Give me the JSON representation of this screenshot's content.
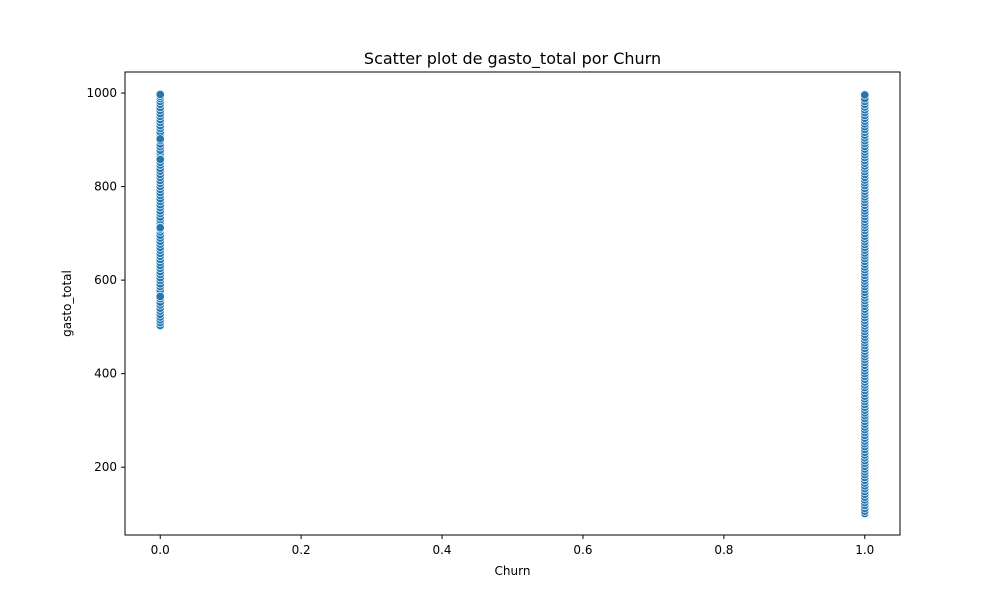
{
  "chart_data": {
    "type": "scatter",
    "title": "Scatter plot de gasto_total por Churn",
    "xlabel": "Churn",
    "ylabel": "gasto_total",
    "xlim": [
      -0.05,
      1.05
    ],
    "ylim": [
      55,
      1045
    ],
    "xticks": [
      {
        "value": 0.0,
        "label": "0.0"
      },
      {
        "value": 0.2,
        "label": "0.2"
      },
      {
        "value": 0.4,
        "label": "0.4"
      },
      {
        "value": 0.6,
        "label": "0.6"
      },
      {
        "value": 0.8,
        "label": "0.8"
      },
      {
        "value": 1.0,
        "label": "1.0"
      }
    ],
    "yticks": [
      {
        "value": 200,
        "label": "200"
      },
      {
        "value": 400,
        "label": "400"
      },
      {
        "value": 600,
        "label": "600"
      },
      {
        "value": 800,
        "label": "800"
      },
      {
        "value": 1000,
        "label": "1000"
      }
    ],
    "grid": false,
    "marker_color": "#1f77b4",
    "marker_edge_color": "#ffffff",
    "series": [
      {
        "x": [
          0,
          0,
          0,
          0,
          0,
          0,
          0,
          0,
          0,
          0,
          0,
          0,
          0,
          0,
          0,
          0,
          0,
          0,
          0,
          0,
          0,
          0,
          0,
          0,
          0,
          0,
          0,
          0,
          0,
          0,
          0,
          0,
          0,
          0,
          0,
          0,
          0,
          0,
          0,
          0,
          0,
          0,
          0,
          0,
          0,
          0,
          0,
          0,
          0,
          0,
          0,
          0,
          0,
          0,
          0,
          0,
          0,
          0,
          0,
          0,
          0,
          0,
          0,
          0,
          0,
          0,
          0,
          0,
          0,
          0,
          0,
          0,
          0,
          0,
          0,
          0,
          0,
          0,
          0,
          0,
          0,
          0
        ],
        "y": [
          503,
          509,
          515,
          521,
          527,
          534,
          540,
          547,
          553,
          560,
          566,
          573,
          579,
          586,
          592,
          599,
          605,
          612,
          618,
          625,
          631,
          638,
          644,
          651,
          657,
          664,
          670,
          677,
          683,
          690,
          696,
          703,
          709,
          716,
          722,
          729,
          735,
          742,
          748,
          755,
          761,
          768,
          774,
          781,
          787,
          794,
          800,
          807,
          813,
          820,
          826,
          833,
          839,
          846,
          852,
          859,
          865,
          872,
          878,
          885,
          891,
          898,
          904,
          911,
          917,
          924,
          930,
          937,
          943,
          950,
          956,
          963,
          969,
          976,
          982,
          988,
          993,
          997,
          565,
          712,
          858,
          902
        ]
      },
      {
        "x": [
          1,
          1,
          1,
          1,
          1,
          1,
          1,
          1,
          1,
          1,
          1,
          1,
          1,
          1,
          1,
          1,
          1,
          1,
          1,
          1,
          1,
          1,
          1,
          1,
          1,
          1,
          1,
          1,
          1,
          1,
          1,
          1,
          1,
          1,
          1,
          1,
          1,
          1,
          1,
          1,
          1,
          1,
          1,
          1,
          1,
          1,
          1,
          1,
          1,
          1,
          1,
          1,
          1,
          1,
          1,
          1,
          1,
          1,
          1,
          1,
          1,
          1,
          1,
          1,
          1,
          1,
          1,
          1,
          1,
          1,
          1,
          1,
          1,
          1,
          1,
          1,
          1,
          1,
          1,
          1,
          1,
          1,
          1,
          1,
          1,
          1,
          1,
          1,
          1,
          1,
          1,
          1,
          1,
          1,
          1,
          1,
          1,
          1,
          1,
          1,
          1,
          1,
          1,
          1,
          1,
          1,
          1,
          1,
          1,
          1,
          1,
          1,
          1,
          1,
          1,
          1,
          1,
          1,
          1,
          1,
          1,
          1,
          1,
          1,
          1,
          1,
          1,
          1,
          1,
          1,
          1,
          1,
          1,
          1,
          1,
          1,
          1,
          1,
          1,
          1,
          1,
          1,
          1,
          1,
          1,
          1,
          1,
          1,
          1,
          1
        ],
        "y": [
          101,
          106,
          112,
          118,
          124,
          130,
          136,
          142,
          148,
          154,
          160,
          166,
          172,
          178,
          184,
          190,
          196,
          202,
          208,
          214,
          220,
          226,
          232,
          238,
          244,
          250,
          256,
          262,
          268,
          274,
          280,
          286,
          292,
          298,
          304,
          310,
          316,
          322,
          328,
          334,
          340,
          346,
          352,
          358,
          364,
          370,
          376,
          382,
          388,
          394,
          400,
          406,
          412,
          418,
          424,
          430,
          436,
          442,
          448,
          454,
          460,
          466,
          472,
          478,
          484,
          490,
          496,
          502,
          508,
          514,
          520,
          526,
          532,
          538,
          544,
          550,
          556,
          562,
          568,
          574,
          580,
          586,
          592,
          598,
          604,
          610,
          616,
          622,
          628,
          634,
          640,
          646,
          652,
          658,
          664,
          670,
          676,
          682,
          688,
          694,
          700,
          706,
          712,
          718,
          724,
          730,
          736,
          742,
          748,
          754,
          760,
          766,
          772,
          778,
          784,
          790,
          796,
          802,
          808,
          814,
          820,
          826,
          832,
          838,
          844,
          850,
          856,
          862,
          868,
          874,
          880,
          886,
          892,
          898,
          904,
          910,
          916,
          922,
          928,
          934,
          940,
          946,
          952,
          958,
          964,
          970,
          976,
          982,
          988,
          996
        ]
      }
    ]
  }
}
